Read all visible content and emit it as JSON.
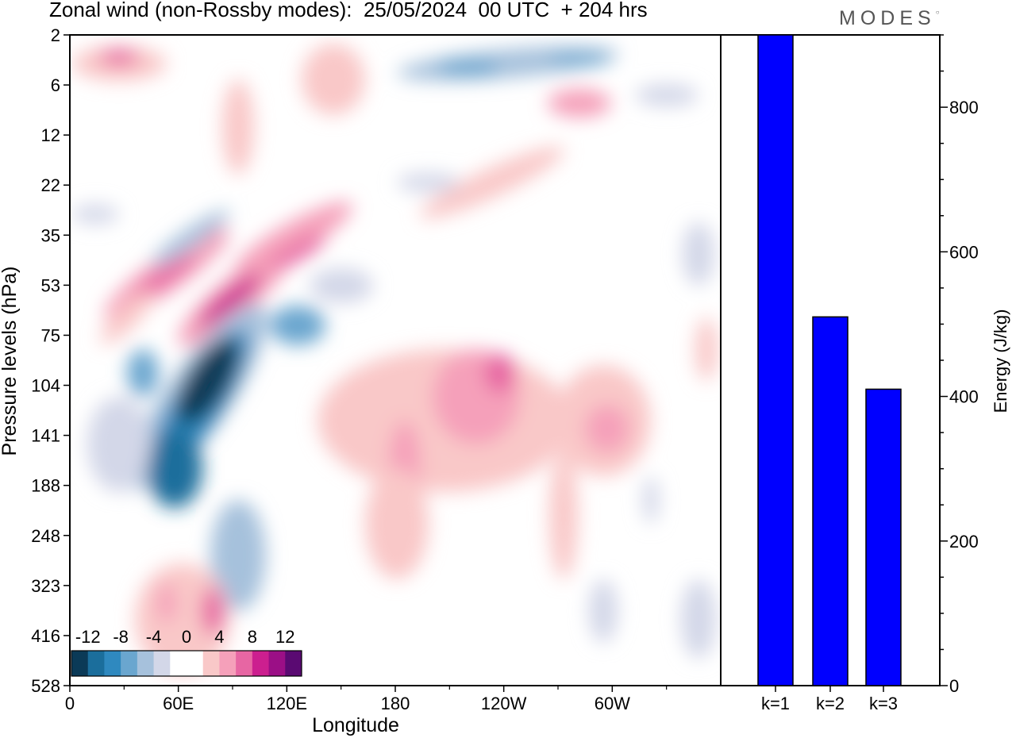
{
  "title": "Zonal wind (non-Rossby modes):  25/05/2024  00 UTC  + 204 hrs",
  "brand": "MODES",
  "chart_data": [
    {
      "type": "heatmap",
      "xlabel": "Longitude",
      "ylabel": "Pressure levels (hPa)",
      "x_ticks": [
        "0",
        "60E",
        "120E",
        "180",
        "120W",
        "60W"
      ],
      "y_ticks": [
        "2",
        "6",
        "12",
        "22",
        "35",
        "53",
        "75",
        "104",
        "141",
        "188",
        "248",
        "323",
        "416",
        "528"
      ],
      "colorbar": {
        "tick_labels": [
          "-12",
          "-8",
          "-4",
          "0",
          "4",
          "8",
          "12"
        ],
        "colors": [
          "#0b3a57",
          "#1b6e9c",
          "#2f89bf",
          "#6aa6cf",
          "#a6c1dc",
          "#d3d7e8",
          "#ffffff",
          "#ffffff",
          "#f9c8c8",
          "#f5a0ba",
          "#e766a3",
          "#cc1f8f",
          "#9b0f86",
          "#5a0a72"
        ]
      },
      "features": [
        {
          "sign": "negative",
          "level": -14,
          "lon": 75,
          "plev_index": 7.3
        },
        {
          "sign": "negative",
          "level": -12,
          "lon": 58,
          "plev_index": 8.5
        },
        {
          "sign": "negative",
          "level": -6,
          "lon": 120,
          "plev_index": 6.3
        },
        {
          "sign": "negative",
          "level": -6,
          "lon": 225,
          "plev_index": 0.6
        },
        {
          "sign": "positive",
          "level": 10,
          "lon": 93,
          "plev_index": 5.6
        },
        {
          "sign": "positive",
          "level": 10,
          "lon": 128,
          "plev_index": 4.5
        },
        {
          "sign": "positive",
          "level": 8,
          "lon": 52,
          "plev_index": 5.0
        },
        {
          "sign": "positive",
          "level": 8,
          "lon": 232,
          "plev_index": 7.0
        },
        {
          "sign": "positive",
          "level": 6,
          "lon": 300,
          "plev_index": 7.9
        },
        {
          "sign": "positive",
          "level": 6,
          "lon": 30,
          "plev_index": 0.5
        },
        {
          "sign": "positive",
          "level": 6,
          "lon": 285,
          "plev_index": 1.5
        },
        {
          "sign": "positive",
          "level": 6,
          "lon": 72,
          "plev_index": 12.0
        }
      ]
    },
    {
      "type": "bar",
      "categories": [
        "k=1",
        "k=2",
        "k=3"
      ],
      "values": [
        900,
        510,
        410
      ],
      "color": "#0000ff",
      "ylabel": "Energy (J/kg)",
      "ylim": [
        0,
        900
      ],
      "y_ticks": [
        0,
        200,
        400,
        600,
        800
      ],
      "minor_step": 50
    }
  ]
}
